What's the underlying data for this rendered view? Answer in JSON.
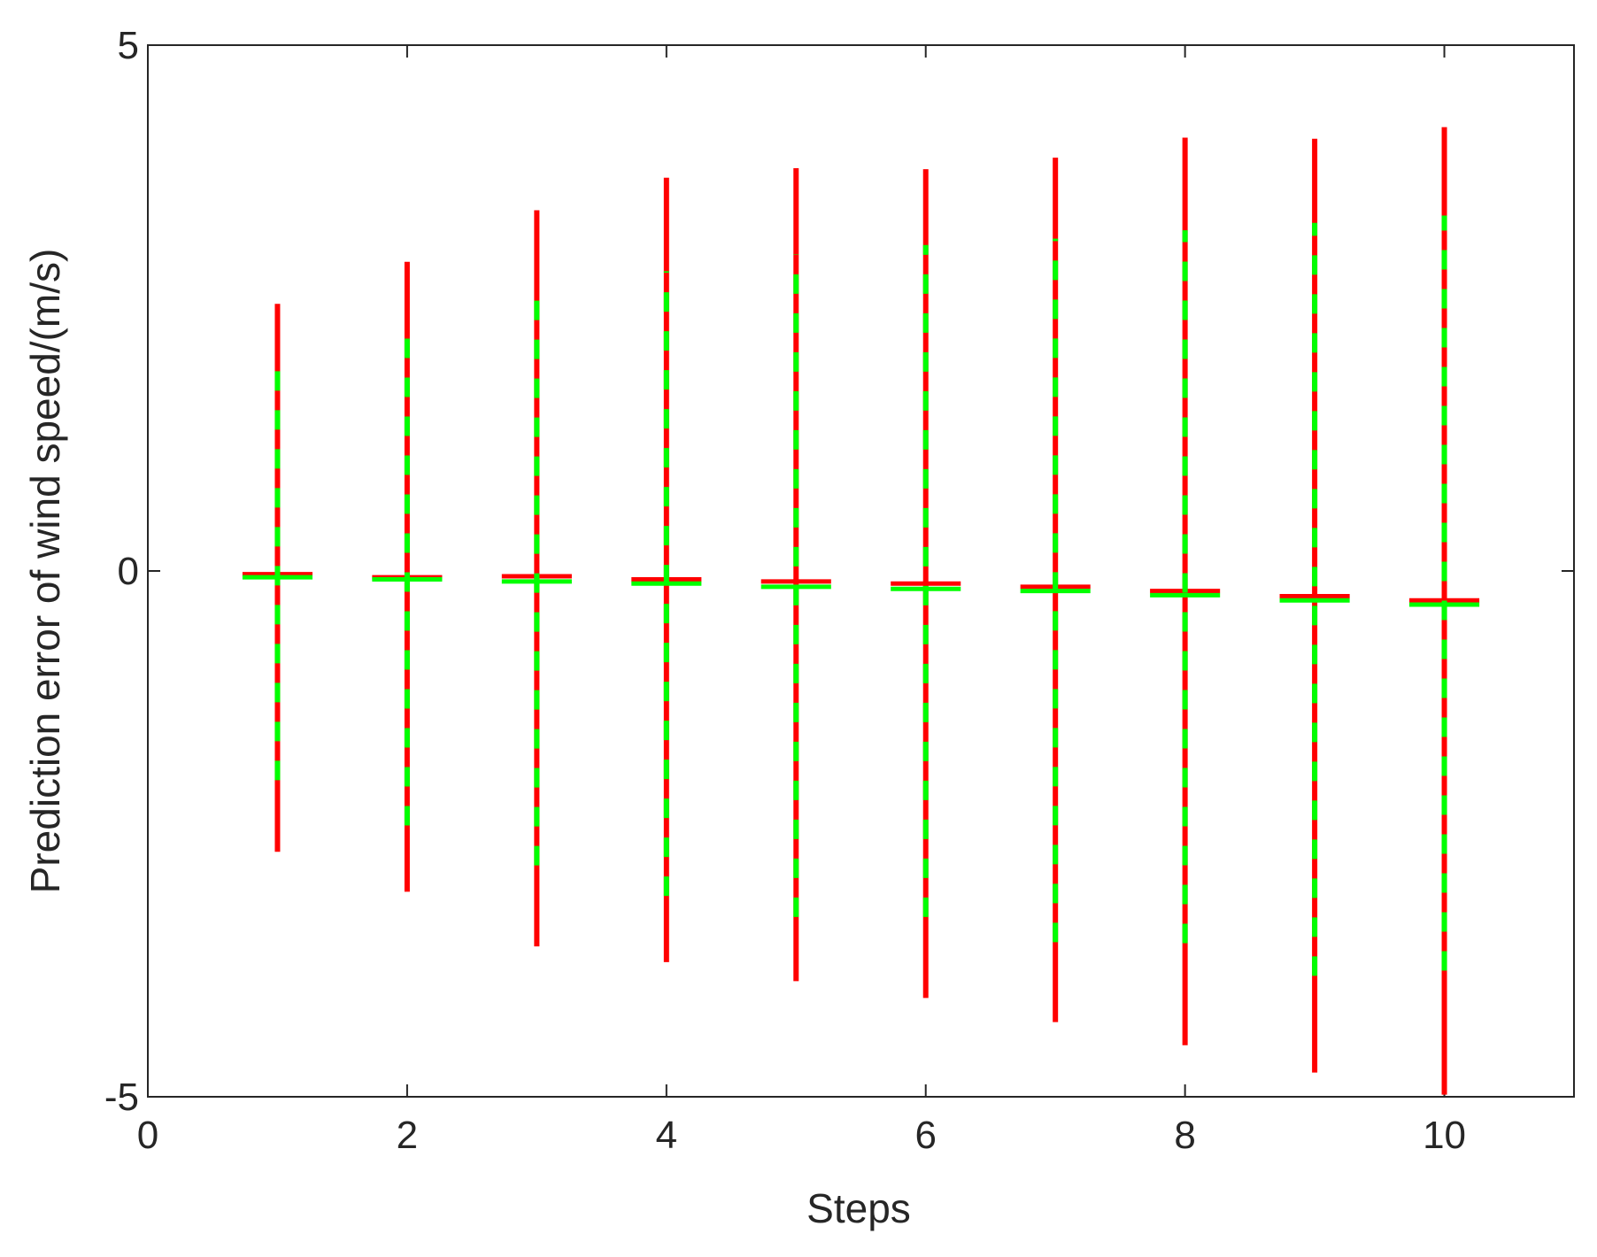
{
  "chart_data": {
    "type": "errorbar",
    "xlabel": "Steps",
    "ylabel": "Prediction error of wind speed/(m/s)",
    "x": [
      1,
      2,
      3,
      4,
      5,
      6,
      7,
      8,
      9,
      10
    ],
    "xlim": [
      0,
      11
    ],
    "xticks": [
      0,
      2,
      4,
      6,
      8,
      10
    ],
    "ylim": [
      -5,
      5
    ],
    "yticks": [
      -5,
      0,
      5
    ],
    "series": [
      {
        "color": "#ff0000",
        "dashed": false,
        "values": [
          -0.03,
          -0.06,
          -0.05,
          -0.08,
          -0.1,
          -0.12,
          -0.15,
          -0.19,
          -0.24,
          -0.28
        ],
        "low": [
          -2.67,
          -3.05,
          -3.57,
          -3.72,
          -3.9,
          -4.06,
          -4.29,
          -4.51,
          -4.77,
          -4.98
        ],
        "high": [
          2.54,
          2.94,
          3.43,
          3.74,
          3.83,
          3.82,
          3.93,
          4.12,
          4.11,
          4.22
        ]
      },
      {
        "color": "#00ff00",
        "dashed": true,
        "values": [
          -0.06,
          -0.08,
          -0.1,
          -0.12,
          -0.15,
          -0.17,
          -0.19,
          -0.23,
          -0.28,
          -0.32
        ],
        "low": [
          -1.99,
          -2.42,
          -2.8,
          -3.09,
          -3.29,
          -3.29,
          -3.53,
          -3.54,
          -3.85,
          -3.8
        ],
        "high": [
          1.92,
          2.31,
          2.62,
          2.85,
          3.01,
          3.1,
          3.16,
          3.24,
          3.31,
          3.38
        ]
      }
    ]
  }
}
